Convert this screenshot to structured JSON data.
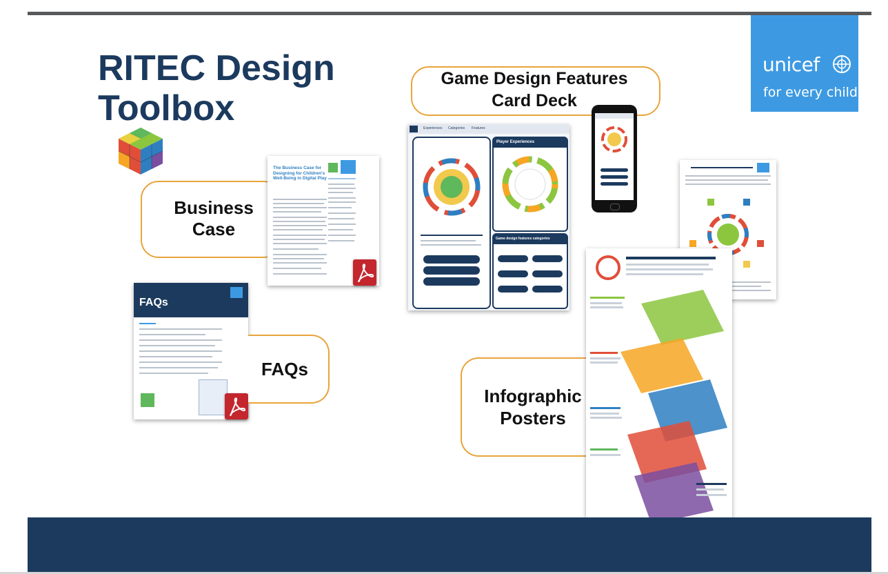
{
  "slide": {
    "title_line1": "RITEC Design",
    "title_line2": "Toolbox"
  },
  "brand": {
    "name": "unicef",
    "tagline": "for every child",
    "color": "#3d9ae2"
  },
  "labels": {
    "business_case_1": "Business",
    "business_case_2": "Case",
    "faqs": "FAQs",
    "card_deck_1": "Game Design Features",
    "card_deck_2": "Card Deck",
    "posters_1": "Infographic",
    "posters_2": "Posters"
  },
  "business_doc": {
    "title": "The Business Case for Designing for Children's Well-Being in Digital Play"
  },
  "faq_doc": {
    "title": "FAQs"
  },
  "card_deck_doc": {
    "tabs": [
      "Experiences",
      "Categories",
      "Features"
    ],
    "panel_title": "Player Experiences",
    "categories_title": "Game design features categories"
  },
  "colors": {
    "title": "#1c3a5e",
    "accent_border": "#e8a43c",
    "footer": "#1c3a5e",
    "pdf": "#c4262e"
  }
}
